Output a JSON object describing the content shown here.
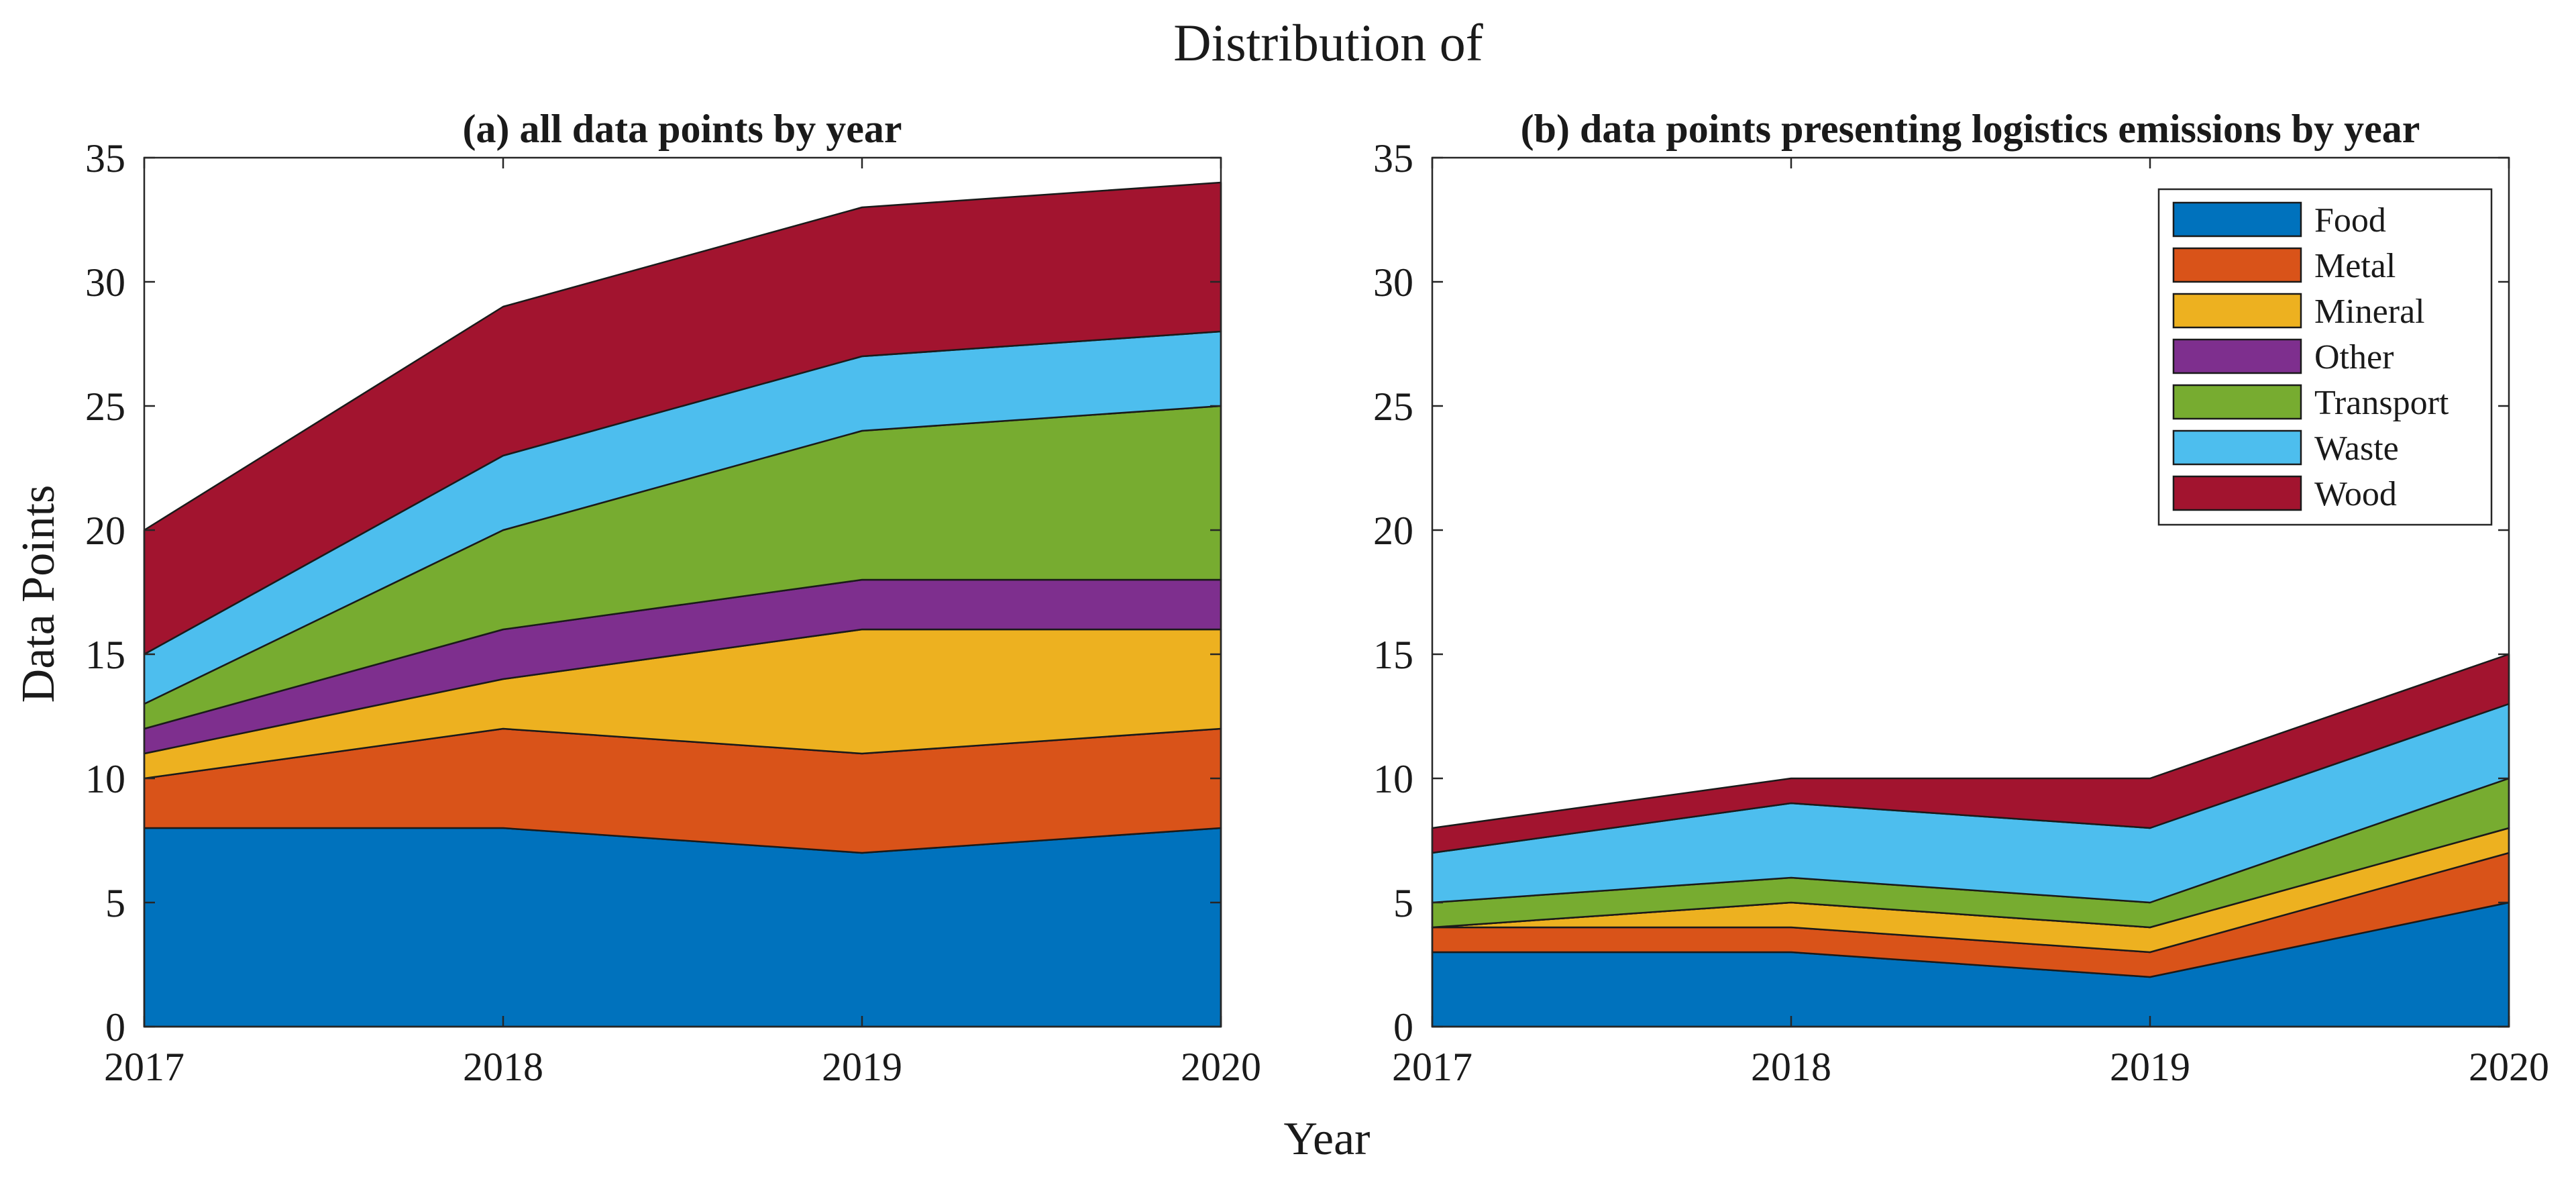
{
  "figure": {
    "title": "Distribution of",
    "xlabel": "Year",
    "ylabel": "Data Points"
  },
  "colors": {
    "Food": "#0072BD",
    "Metal": "#D95319",
    "Mineral": "#EDB120",
    "Other": "#7E2F8E",
    "Transport": "#77AC30",
    "Waste": "#4DBEEE",
    "Wood": "#A2142F"
  },
  "chart_data": [
    {
      "type": "area",
      "stacked": true,
      "title": "(a) all data points by year",
      "xlabel": "Year",
      "ylabel": "Data Points",
      "x": [
        2017,
        2018,
        2019,
        2020
      ],
      "x_ticks": [
        "2017",
        "2018",
        "2019",
        "2020"
      ],
      "ylim": [
        0,
        35
      ],
      "y_ticks": [
        "0",
        "5",
        "10",
        "15",
        "20",
        "25",
        "30",
        "35"
      ],
      "legend": false,
      "series": [
        {
          "name": "Food",
          "values": [
            8,
            8,
            7,
            8
          ]
        },
        {
          "name": "Metal",
          "values": [
            2,
            4,
            4,
            4
          ]
        },
        {
          "name": "Mineral",
          "values": [
            1,
            2,
            5,
            4
          ]
        },
        {
          "name": "Other",
          "values": [
            1,
            2,
            2,
            2
          ]
        },
        {
          "name": "Transport",
          "values": [
            1,
            4,
            6,
            7
          ]
        },
        {
          "name": "Waste",
          "values": [
            2,
            3,
            3,
            3
          ]
        },
        {
          "name": "Wood",
          "values": [
            5,
            6,
            6,
            6
          ]
        }
      ]
    },
    {
      "type": "area",
      "stacked": true,
      "title": "(b) data points presenting logistics emissions by year",
      "xlabel": "Year",
      "ylabel": "",
      "x": [
        2017,
        2018,
        2019,
        2020
      ],
      "x_ticks": [
        "2017",
        "2018",
        "2019",
        "2020"
      ],
      "ylim": [
        0,
        35
      ],
      "y_ticks": [
        "0",
        "5",
        "10",
        "15",
        "20",
        "25",
        "30",
        "35"
      ],
      "legend": true,
      "legend_location": "top-right",
      "series": [
        {
          "name": "Food",
          "values": [
            3,
            3,
            2,
            5
          ]
        },
        {
          "name": "Metal",
          "values": [
            1,
            1,
            1,
            2
          ]
        },
        {
          "name": "Mineral",
          "values": [
            0,
            1,
            1,
            1
          ]
        },
        {
          "name": "Other",
          "values": [
            0,
            0,
            0,
            0
          ]
        },
        {
          "name": "Transport",
          "values": [
            1,
            1,
            1,
            2
          ]
        },
        {
          "name": "Waste",
          "values": [
            2,
            3,
            3,
            3
          ]
        },
        {
          "name": "Wood",
          "values": [
            1,
            1,
            2,
            2
          ]
        }
      ]
    }
  ]
}
